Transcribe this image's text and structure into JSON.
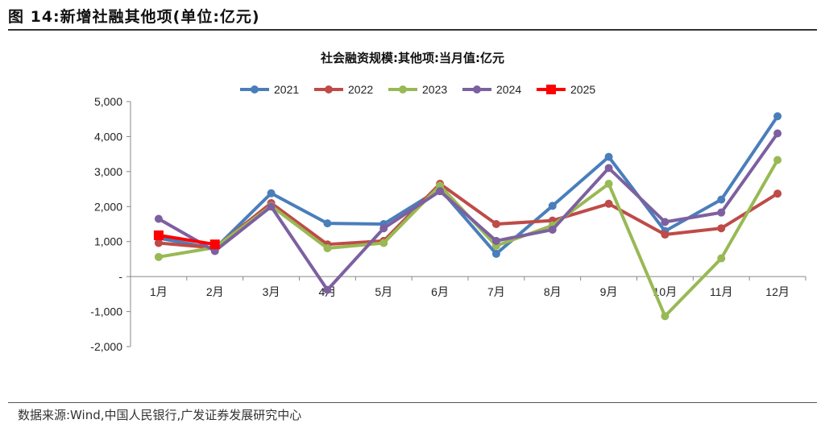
{
  "figure": {
    "title": "图 14:新增社融其他项(单位:亿元)",
    "source": "数据来源:Wind,中国人民银行,广发证券发展研究中心"
  },
  "chart_data": {
    "type": "line",
    "title": "社会融资规模:其他项:当月值:亿元",
    "categories": [
      "1月",
      "2月",
      "3月",
      "4月",
      "5月",
      "6月",
      "7月",
      "8月",
      "9月",
      "10月",
      "11月",
      "12月"
    ],
    "ylim": [
      -2000,
      5000
    ],
    "yticks": [
      5000,
      4000,
      3000,
      2000,
      1000,
      0,
      -1000,
      -2000
    ],
    "ytick_labels": [
      "5,000",
      "4,000",
      "3,000",
      "2,000",
      "1,000",
      "-",
      "-1,000",
      "-2,000"
    ],
    "grid": false,
    "legend_position": "top",
    "series": [
      {
        "name": "2021",
        "color": "#4a7ebb",
        "marker": "circle",
        "values": [
          1100,
          800,
          2380,
          1520,
          1500,
          2500,
          650,
          2020,
          3420,
          1300,
          2200,
          4580
        ]
      },
      {
        "name": "2022",
        "color": "#be4b48",
        "marker": "circle",
        "values": [
          960,
          820,
          2100,
          920,
          1020,
          2650,
          1500,
          1600,
          2080,
          1200,
          1380,
          2370
        ]
      },
      {
        "name": "2023",
        "color": "#98b954",
        "marker": "circle",
        "values": [
          560,
          830,
          2020,
          810,
          960,
          2600,
          880,
          1460,
          2650,
          -1130,
          520,
          3330
        ]
      },
      {
        "name": "2024",
        "color": "#7d60a0",
        "marker": "circle",
        "values": [
          1650,
          730,
          2000,
          -380,
          1380,
          2440,
          1020,
          1340,
          3100,
          1560,
          1830,
          4090
        ]
      },
      {
        "name": "2025",
        "color": "#ff0000",
        "marker": "square",
        "values": [
          1180,
          920,
          null,
          null,
          null,
          null,
          null,
          null,
          null,
          null,
          null,
          null
        ]
      }
    ]
  }
}
